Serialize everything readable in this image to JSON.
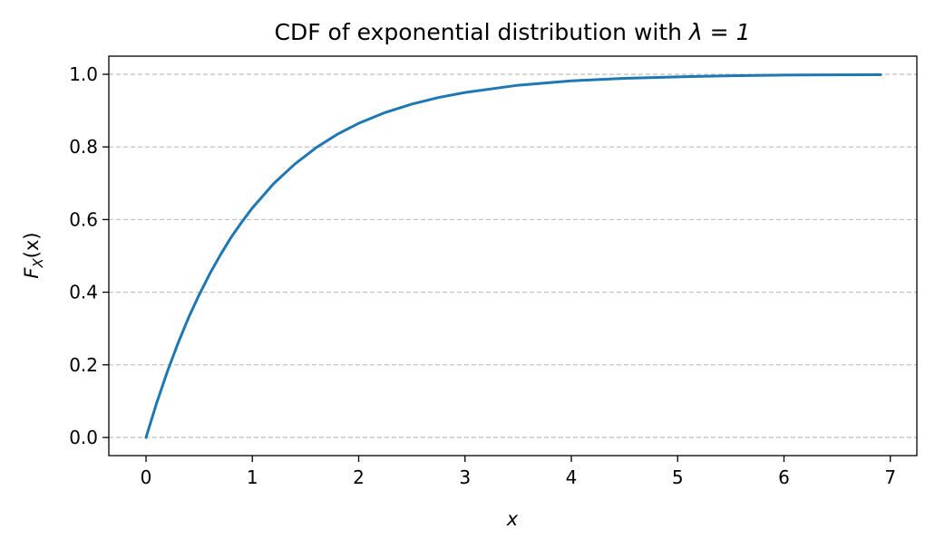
{
  "chart_data": {
    "type": "line",
    "title_text": "CDF of exponential distribution with",
    "title_math": "λ = 1",
    "xlabel": "x",
    "ylabel_main": "F",
    "ylabel_sub": "X",
    "ylabel_arg": "(x)",
    "xlim": [
      -0.35,
      7.25
    ],
    "ylim": [
      -0.05,
      1.05
    ],
    "xticks": [
      0,
      1,
      2,
      3,
      4,
      5,
      6,
      7
    ],
    "xtick_labels": [
      "0",
      "1",
      "2",
      "3",
      "4",
      "5",
      "6",
      "7"
    ],
    "yticks": [
      0.0,
      0.2,
      0.4,
      0.6,
      0.8,
      1.0
    ],
    "ytick_labels": [
      "0.0",
      "0.2",
      "0.4",
      "0.6",
      "0.8",
      "1.0"
    ],
    "grid": {
      "axis": "y",
      "style": "dashed",
      "color": "#c4c4c4"
    },
    "series": [
      {
        "color": "#1f77b4",
        "x": [
          0,
          0.1,
          0.2,
          0.3,
          0.4,
          0.5,
          0.6,
          0.7,
          0.8,
          0.9,
          1.0,
          1.2,
          1.4,
          1.6,
          1.8,
          2.0,
          2.25,
          2.5,
          2.75,
          3.0,
          3.5,
          4.0,
          4.5,
          5.0,
          5.5,
          6.0,
          6.5,
          6.91
        ],
        "y": [
          0,
          0.095,
          0.181,
          0.259,
          0.33,
          0.393,
          0.451,
          0.503,
          0.551,
          0.593,
          0.632,
          0.699,
          0.753,
          0.798,
          0.835,
          0.865,
          0.895,
          0.918,
          0.936,
          0.95,
          0.97,
          0.982,
          0.989,
          0.993,
          0.996,
          0.998,
          0.9985,
          0.999
        ]
      }
    ]
  }
}
